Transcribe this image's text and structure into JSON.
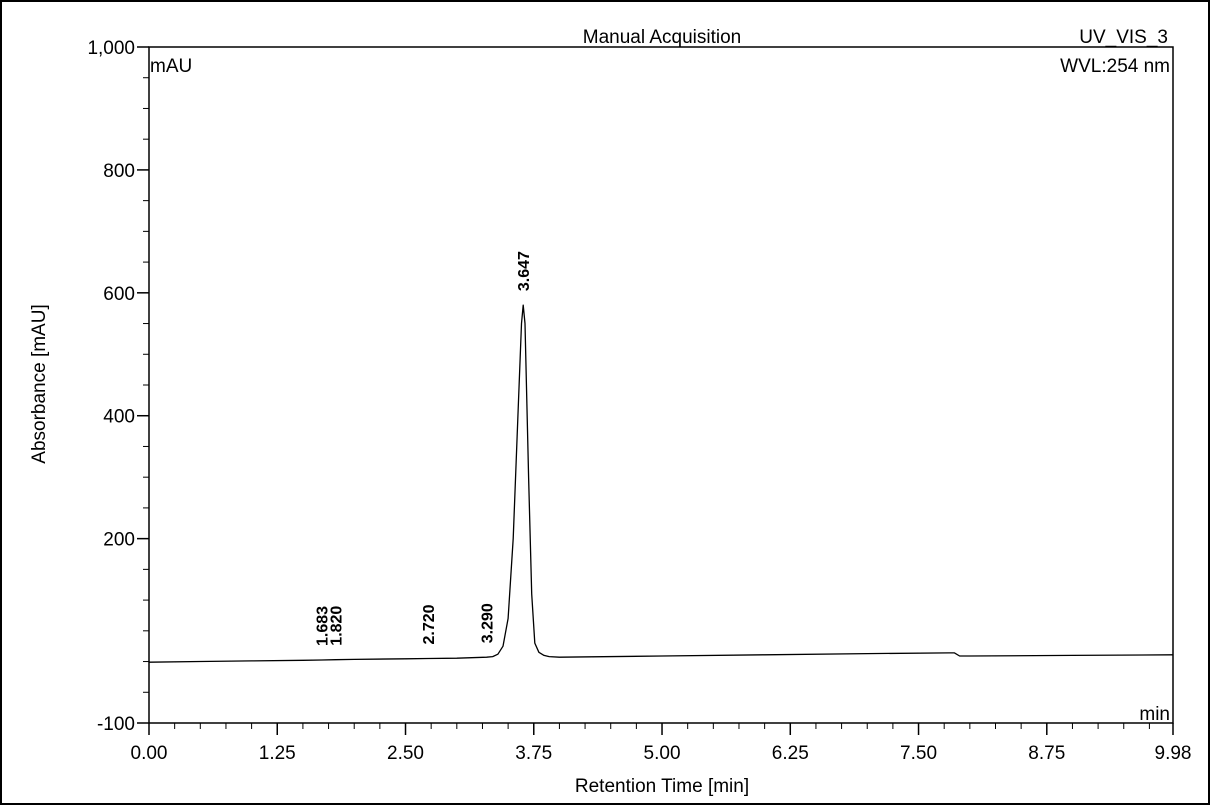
{
  "chart_data": {
    "type": "line",
    "title": "Manual Acquisition",
    "channel": "UV_VIS_3",
    "wavelength": "WVL:254 nm",
    "y_unit": "mAU",
    "x_unit": "min",
    "xlabel": "Retention Time [min]",
    "ylabel": "Absorbance [mAU]",
    "xlim": [
      0.0,
      9.98
    ],
    "ylim": [
      -100,
      1000
    ],
    "x_ticks": [
      "0.00",
      "1.25",
      "2.50",
      "3.75",
      "5.00",
      "6.25",
      "7.50",
      "8.75",
      "9.98"
    ],
    "x_tick_values": [
      0.0,
      1.25,
      2.5,
      3.75,
      5.0,
      6.25,
      7.5,
      8.75,
      9.98
    ],
    "y_ticks": [
      "1,000",
      "800",
      "600",
      "400",
      "200",
      "-100"
    ],
    "y_tick_values": [
      1000,
      800,
      600,
      400,
      200,
      -100
    ],
    "grid": false,
    "series": [
      {
        "x": [
          0.0,
          0.5,
          1.0,
          1.5,
          1.683,
          1.82,
          2.0,
          2.5,
          2.72,
          3.0,
          3.29,
          3.35,
          3.4,
          3.45,
          3.5,
          3.55,
          3.6,
          3.63,
          3.647,
          3.665,
          3.7,
          3.73,
          3.76,
          3.8,
          3.85,
          3.9,
          4.0,
          5.0,
          6.0,
          7.0,
          7.8,
          7.85,
          7.9,
          7.95,
          8.0,
          9.0,
          9.98
        ],
        "y": [
          -1,
          0,
          1,
          2,
          2.5,
          3,
          3.5,
          4.5,
          5,
          5.5,
          7,
          8,
          12,
          25,
          70,
          200,
          420,
          550,
          580,
          550,
          300,
          110,
          30,
          15,
          10,
          8,
          7,
          9,
          11,
          13,
          14,
          14,
          9,
          9,
          9,
          10,
          11
        ]
      }
    ],
    "peak_labels": [
      {
        "text": "1.683",
        "x": 1.683,
        "y": 2.5
      },
      {
        "text": "1.820",
        "x": 1.82,
        "y": 3
      },
      {
        "text": "2.720",
        "x": 2.72,
        "y": 5
      },
      {
        "text": "3.290",
        "x": 3.29,
        "y": 7
      },
      {
        "text": "3.647",
        "x": 3.647,
        "y": 580
      }
    ]
  }
}
